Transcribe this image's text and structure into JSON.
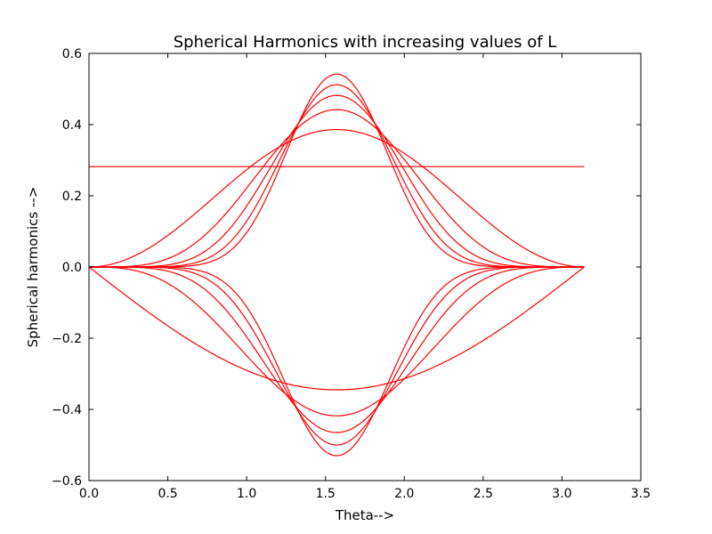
{
  "chart_data": {
    "type": "line",
    "title": "Spherical Harmonics with increasing values of L",
    "xlabel": "Theta-->",
    "ylabel": "Spherical harmonics -->",
    "xlim": [
      0.0,
      3.5
    ],
    "ylim": [
      -0.6,
      0.6
    ],
    "x_ticks": [
      "0.0",
      "0.5",
      "1.0",
      "1.5",
      "2.0",
      "2.5",
      "3.0",
      "3.5"
    ],
    "y_ticks": [
      "0.6",
      "0.4",
      "0.2",
      "0.0",
      "−0.2",
      "−0.4",
      "−0.6"
    ],
    "x_tick_values": [
      0.0,
      0.5,
      1.0,
      1.5,
      2.0,
      2.5,
      3.0,
      3.5
    ],
    "y_tick_values": [
      0.6,
      0.4,
      0.2,
      0.0,
      -0.2,
      -0.4,
      -0.6
    ],
    "grid": false,
    "line_color": "#ff0000",
    "series": [
      {
        "l": 0,
        "amplitude": 0.282,
        "sin_power": 0
      },
      {
        "l": 1,
        "amplitude": 0.386,
        "sin_power": 2
      },
      {
        "l": 2,
        "amplitude": 0.442,
        "sin_power": 4
      },
      {
        "l": 3,
        "amplitude": 0.482,
        "sin_power": 6
      },
      {
        "l": 4,
        "amplitude": 0.512,
        "sin_power": 8
      },
      {
        "l": 5,
        "amplitude": 0.542,
        "sin_power": 10
      },
      {
        "l": 1,
        "amplitude": -0.345,
        "sin_power": 1
      },
      {
        "l": 2,
        "amplitude": -0.418,
        "sin_power": 3
      },
      {
        "l": 3,
        "amplitude": -0.465,
        "sin_power": 5
      },
      {
        "l": 4,
        "amplitude": -0.5,
        "sin_power": 7
      },
      {
        "l": 5,
        "amplitude": -0.53,
        "sin_power": 9
      }
    ],
    "x_range": [
      0.0,
      3.1416
    ]
  }
}
